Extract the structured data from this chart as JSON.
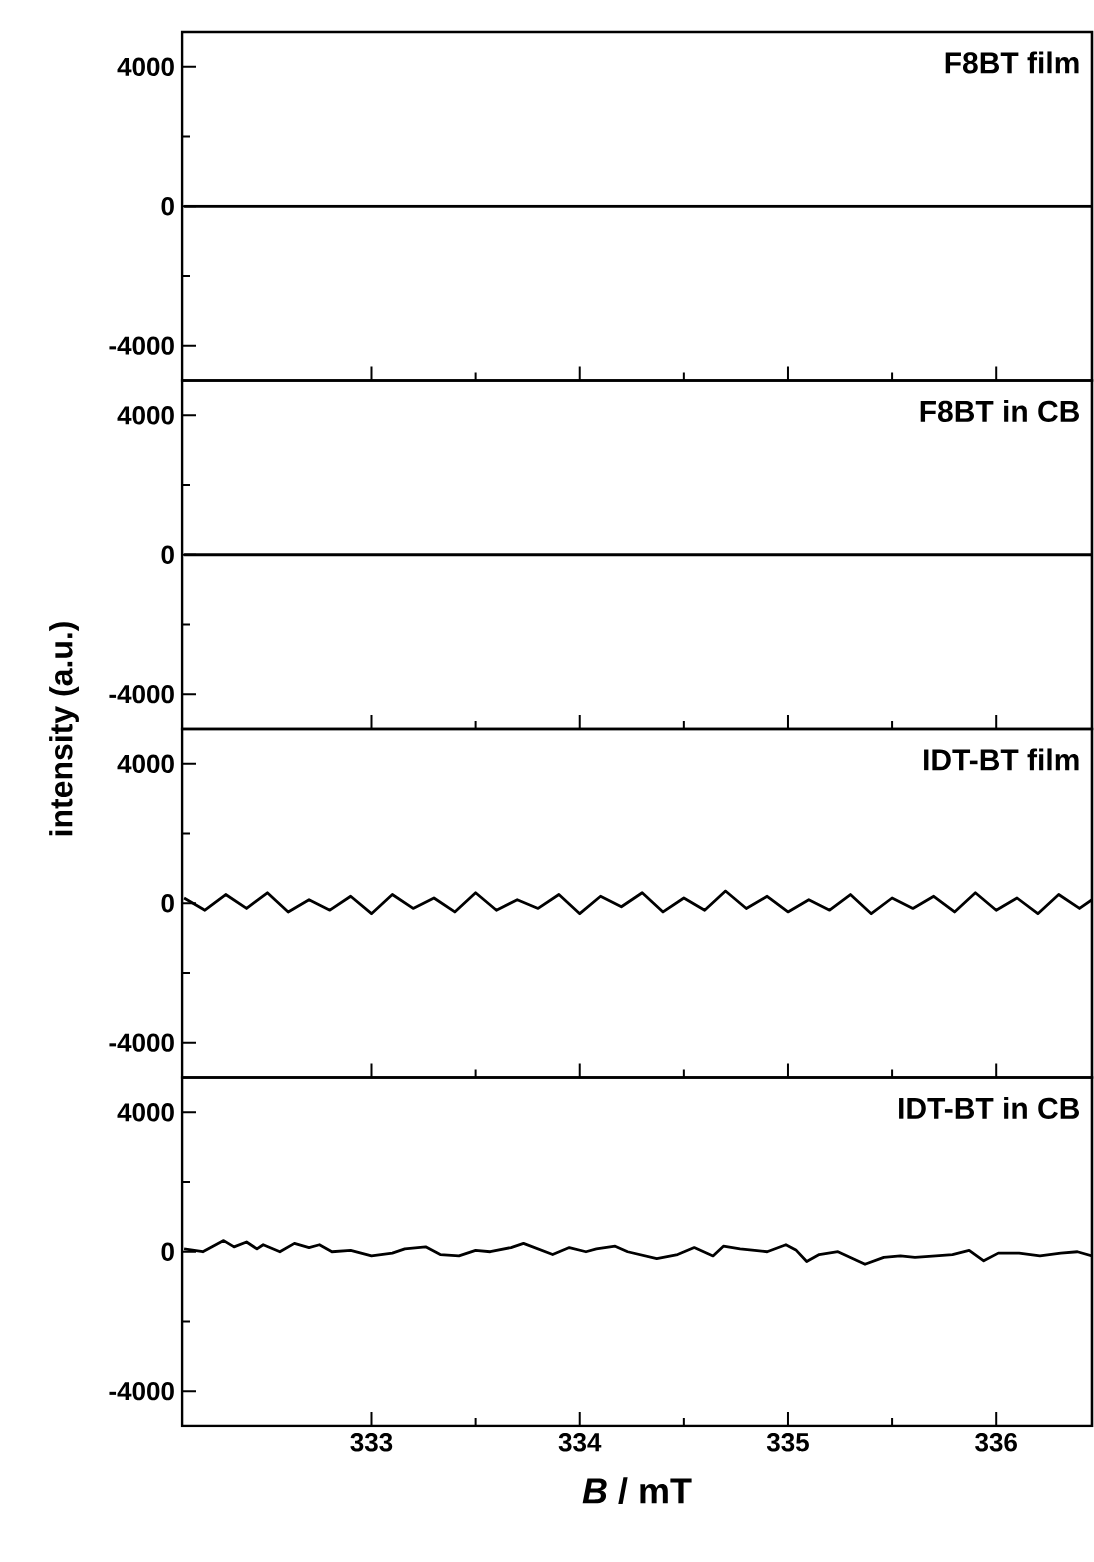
{
  "chart_data": [
    {
      "type": "line",
      "title": "F8BT film",
      "color": "#000000",
      "x": [
        332.1,
        333,
        334,
        335,
        336,
        336.46
      ],
      "values": [
        0,
        0,
        0,
        0,
        0,
        0
      ],
      "xlim": [
        332.09,
        336.46
      ],
      "ylim": [
        -5000,
        5000
      ],
      "xticks": [
        333,
        334,
        335,
        336
      ],
      "yticks": [
        -4000,
        0,
        4000
      ],
      "tick_labels": "y"
    },
    {
      "type": "line",
      "title": "F8BT in CB",
      "ylabel": "intensity (a.u.)",
      "color": "#000000",
      "x": [
        332.1,
        333,
        334,
        335,
        336,
        336.46
      ],
      "values": [
        0,
        0,
        0,
        0,
        0,
        0
      ],
      "xlim": [
        332.09,
        336.46
      ],
      "ylim": [
        -5000,
        5000
      ],
      "xticks": [
        333,
        334,
        335,
        336
      ],
      "yticks": [
        -4000,
        0,
        4000
      ],
      "tick_labels": "y"
    },
    {
      "type": "line",
      "title": "IDT-BT film",
      "color": "#000000",
      "x": [
        332.1,
        332.2,
        332.3,
        332.4,
        332.5,
        332.6,
        332.7,
        332.8,
        332.9,
        333.0,
        333.1,
        333.2,
        333.3,
        333.4,
        333.5,
        333.6,
        333.7,
        333.8,
        333.9,
        334.0,
        334.1,
        334.2,
        334.3,
        334.4,
        334.5,
        334.6,
        334.7,
        334.8,
        334.9,
        335.0,
        335.1,
        335.2,
        335.3,
        335.4,
        335.5,
        335.6,
        335.7,
        335.8,
        335.9,
        336.0,
        336.1,
        336.2,
        336.3,
        336.4,
        336.46
      ],
      "values": [
        150,
        -200,
        250,
        -150,
        300,
        -250,
        100,
        -200,
        200,
        -300,
        250,
        -150,
        150,
        -250,
        300,
        -200,
        100,
        -150,
        250,
        -300,
        200,
        -100,
        300,
        -250,
        150,
        -200,
        350,
        -150,
        200,
        -250,
        100,
        -200,
        250,
        -300,
        150,
        -150,
        200,
        -250,
        300,
        -200,
        150,
        -300,
        250,
        -150,
        100
      ],
      "xlim": [
        332.09,
        336.46
      ],
      "ylim": [
        -5000,
        5000
      ],
      "xticks": [
        333,
        334,
        335,
        336
      ],
      "yticks": [
        -4000,
        0,
        4000
      ],
      "tick_labels": "y"
    },
    {
      "type": "line",
      "title": "IDT-BT in CB",
      "xlabel": "*B* / mT",
      "color": "#000000",
      "x": [
        332.1,
        332.19,
        332.29,
        332.34,
        332.4,
        332.45,
        332.48,
        332.56,
        332.63,
        332.7,
        332.75,
        332.81,
        332.9,
        333.0,
        333.1,
        333.16,
        333.26,
        333.33,
        333.42,
        333.5,
        333.57,
        333.67,
        333.73,
        333.87,
        333.95,
        334.03,
        334.08,
        334.17,
        334.23,
        334.37,
        334.47,
        334.55,
        334.64,
        334.69,
        334.77,
        334.84,
        334.9,
        334.99,
        335.04,
        335.09,
        335.15,
        335.24,
        335.37,
        335.46,
        335.54,
        335.61,
        335.71,
        335.79,
        335.87,
        335.94,
        336.01,
        336.11,
        336.21,
        336.31,
        336.39,
        336.46
      ],
      "values": [
        80,
        0,
        320,
        140,
        280,
        80,
        200,
        0,
        240,
        120,
        200,
        0,
        40,
        -120,
        -40,
        80,
        140,
        -80,
        -120,
        40,
        0,
        120,
        240,
        -80,
        120,
        0,
        80,
        160,
        0,
        -200,
        -80,
        120,
        -120,
        160,
        80,
        40,
        0,
        200,
        40,
        -280,
        -80,
        0,
        -360,
        -160,
        -120,
        -160,
        -120,
        -80,
        40,
        -260,
        -40,
        -40,
        -120,
        -40,
        0,
        -120
      ],
      "xlim": [
        332.09,
        336.46
      ],
      "ylim": [
        -5000,
        5000
      ],
      "xticks": [
        333,
        334,
        335,
        336
      ],
      "yticks": [
        -4000,
        0,
        4000
      ]
    }
  ]
}
